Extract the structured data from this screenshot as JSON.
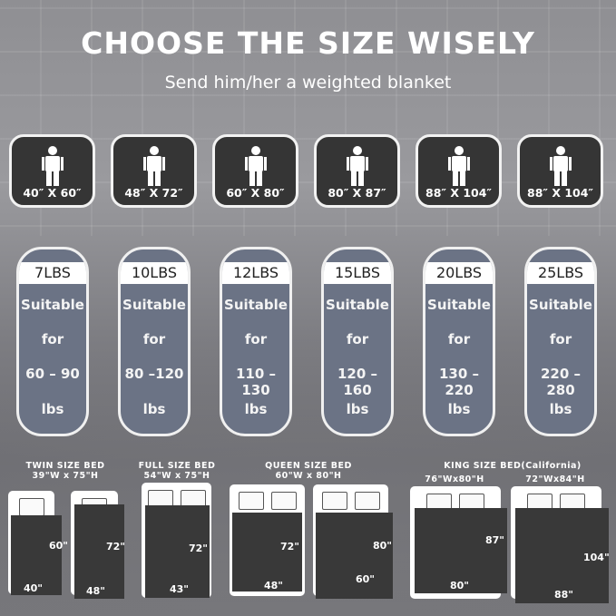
{
  "header": {
    "title": "CHOOSE THE SIZE WISELY",
    "subtitle": "Send him/her a weighted blanket"
  },
  "sizes": [
    {
      "dimensions": "40″ X 60″",
      "weight": "7LBS",
      "line1": "Suitable",
      "line2": "for",
      "range": "60 – 90",
      "unit": "lbs"
    },
    {
      "dimensions": "48″ X 72″",
      "weight": "10LBS",
      "line1": "Suitable",
      "line2": "for",
      "range": "80 –120",
      "unit": "lbs"
    },
    {
      "dimensions": "60″ X 80″",
      "weight": "12LBS",
      "line1": "Suitable",
      "line2": "for",
      "range": "110 –130",
      "unit": "lbs"
    },
    {
      "dimensions": "80″ X 87″",
      "weight": "15LBS",
      "line1": "Suitable",
      "line2": "for",
      "range": "120 –160",
      "unit": "lbs"
    },
    {
      "dimensions": "88″ X 104″",
      "weight": "20LBS",
      "line1": "Suitable",
      "line2": "for",
      "range": "130 – 220",
      "unit": "lbs"
    },
    {
      "dimensions": "88″ X 104″",
      "weight": "25LBS",
      "line1": "Suitable",
      "line2": "for",
      "range": "220 – 280",
      "unit": "lbs"
    }
  ],
  "beds": {
    "twin": {
      "name": "TWIN SIZE BED",
      "size": "39\"W x 75\"H"
    },
    "full": {
      "name": "FULL SIZE BED",
      "size": "54\"W x 75\"H"
    },
    "queen": {
      "name": "QUEEN SIZE BED",
      "size": "60\"W x 80\"H"
    },
    "king": {
      "name": "KING SIZE BED(California)",
      "size_a": "76\"Wx80\"H",
      "size_b": "72\"Wx84\"H"
    }
  },
  "blankets": [
    {
      "h": "60\"",
      "w": "40\""
    },
    {
      "h": "72\"",
      "w": "48\""
    },
    {
      "h": "72\"",
      "w": "43\""
    },
    {
      "h": "72\"",
      "w": "48\""
    },
    {
      "h": "80\"",
      "w": "60\""
    },
    {
      "h": "87\"",
      "w": "80\""
    },
    {
      "h": "104\"",
      "w": "88\""
    }
  ],
  "icons": {
    "person": "person-icon",
    "pillow": "pillow-icon"
  },
  "colors": {
    "card": "#353535",
    "pill": "#6b7385",
    "blanket": "#393939"
  }
}
